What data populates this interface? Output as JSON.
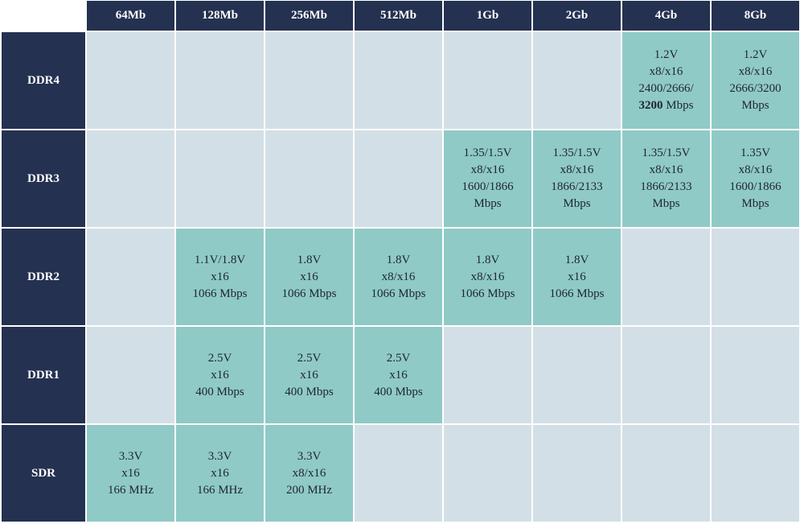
{
  "table": {
    "columns": [
      "64Mb",
      "128Mb",
      "256Mb",
      "512Mb",
      "1Gb",
      "2Gb",
      "4Gb",
      "8Gb"
    ],
    "rows": [
      {
        "label": "DDR4",
        "cells": [
          null,
          null,
          null,
          null,
          null,
          null,
          [
            "1.2V",
            "x8/x16",
            "2400/2666/",
            {
              "bold": "3200",
              "text": "Mbps"
            }
          ],
          [
            "1.2V",
            "x8/x16",
            "2666/3200",
            "Mbps"
          ]
        ]
      },
      {
        "label": "DDR3",
        "cells": [
          null,
          null,
          null,
          null,
          [
            "1.35/1.5V",
            "x8/x16",
            "1600/1866",
            "Mbps"
          ],
          [
            "1.35/1.5V",
            "x8/x16",
            "1866/2133",
            "Mbps"
          ],
          [
            "1.35/1.5V",
            "x8/x16",
            "1866/2133",
            "Mbps"
          ],
          [
            "1.35V",
            "x8/x16",
            "1600/1866",
            "Mbps"
          ]
        ]
      },
      {
        "label": "DDR2",
        "cells": [
          null,
          [
            "1.1V/1.8V",
            "x16",
            "1066 Mbps"
          ],
          [
            "1.8V",
            "x16",
            "1066 Mbps"
          ],
          [
            "1.8V",
            "x8/x16",
            "1066 Mbps"
          ],
          [
            "1.8V",
            "x8/x16",
            "1066 Mbps"
          ],
          [
            "1.8V",
            "x16",
            "1066 Mbps"
          ],
          null,
          null
        ]
      },
      {
        "label": "DDR1",
        "cells": [
          null,
          [
            "2.5V",
            "x16",
            "400 Mbps"
          ],
          [
            "2.5V",
            "x16",
            "400 Mbps"
          ],
          [
            "2.5V",
            "x16",
            "400 Mbps"
          ],
          null,
          null,
          null,
          null
        ]
      },
      {
        "label": "SDR",
        "cells": [
          [
            "3.3V",
            "x16",
            "166 MHz"
          ],
          [
            "3.3V",
            "x16",
            "166 MHz"
          ],
          [
            "3.3V",
            "x8/x16",
            "200 MHz"
          ],
          null,
          null,
          null,
          null,
          null
        ]
      }
    ]
  }
}
